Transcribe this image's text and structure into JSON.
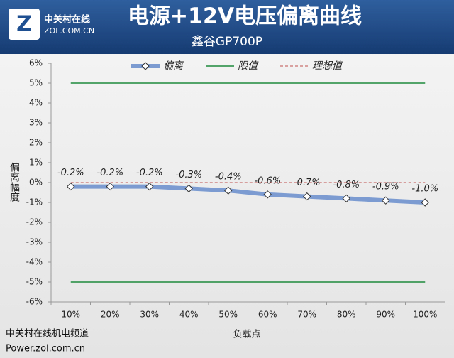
{
  "branding": {
    "logo": "中关村在线",
    "site": "ZOL.COM.CN",
    "footer_channel": "中关村在线机电频道",
    "footer_url": "Power.zol.com.cn"
  },
  "chart_data": {
    "type": "line",
    "title": "电源+12V电压偏离曲线",
    "subtitle": "鑫谷GP700P",
    "y_label": "偏离幅度",
    "x_label": "负载点",
    "categories": [
      "10%",
      "20%",
      "30%",
      "40%",
      "50%",
      "60%",
      "70%",
      "80%",
      "90%",
      "100%"
    ],
    "series": [
      {
        "name": "偏离",
        "color": "#7b9bd1",
        "values": [
          -0.2,
          -0.2,
          -0.2,
          -0.3,
          -0.4,
          -0.6,
          -0.7,
          -0.8,
          -0.9,
          -1.0
        ],
        "value_labels": [
          "-0.2%",
          "-0.2%",
          "-0.2%",
          "-0.3%",
          "-0.4%",
          "-0.6%",
          "-0.7%",
          "-0.8%",
          "-0.9%",
          "-1.0%"
        ]
      },
      {
        "name": "限值",
        "color": "#1e8a3c",
        "values": [
          5,
          5,
          5,
          5,
          5,
          5,
          5,
          5,
          5,
          5
        ],
        "lower_values": [
          -5,
          -5,
          -5,
          -5,
          -5,
          -5,
          -5,
          -5,
          -5,
          -5
        ]
      },
      {
        "name": "理想值",
        "color": "#c0504d",
        "dashed": true,
        "values": [
          0,
          0,
          0,
          0,
          0,
          0,
          0,
          0,
          0,
          0
        ]
      }
    ],
    "ylim": [
      -6,
      6
    ],
    "yticks": [
      {
        "value": -6,
        "label": "-6%"
      },
      {
        "value": -5,
        "label": "-5%"
      },
      {
        "value": -4,
        "label": "-4%"
      },
      {
        "value": -3,
        "label": "-3%"
      },
      {
        "value": -2,
        "label": "-2%"
      },
      {
        "value": -1,
        "label": "-1%"
      },
      {
        "value": 0,
        "label": "0%"
      },
      {
        "value": 1,
        "label": "1%"
      },
      {
        "value": 2,
        "label": "2%"
      },
      {
        "value": 3,
        "label": "3%"
      },
      {
        "value": 4,
        "label": "4%"
      },
      {
        "value": 5,
        "label": "5%"
      },
      {
        "value": 6,
        "label": "6%"
      }
    ],
    "legend": "top"
  }
}
